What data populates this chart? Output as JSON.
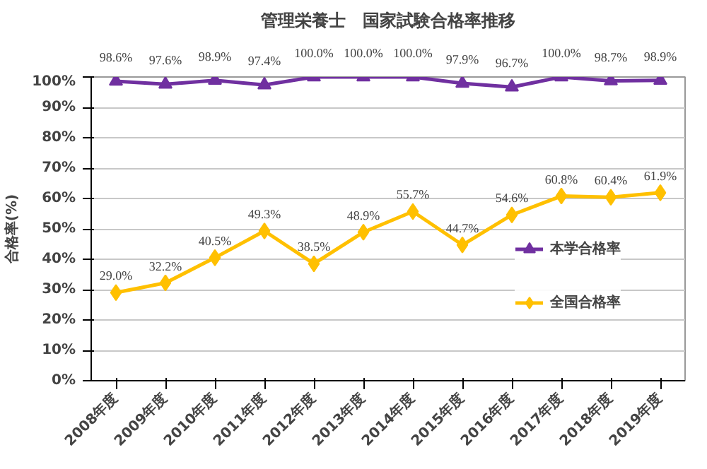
{
  "chart_data": {
    "type": "line",
    "title": "管理栄養士　国家試験合格率推移",
    "ylabel": "合格率(%)",
    "categories": [
      "2008年度",
      "2009年度",
      "2010年度",
      "2011年度",
      "2012年度",
      "2013年度",
      "2014年度",
      "2015年度",
      "2016年度",
      "2017年度",
      "2018年度",
      "2019年度"
    ],
    "series": [
      {
        "name": "本学合格率",
        "color": "#7030a0",
        "marker": "triangle",
        "values": [
          98.6,
          97.6,
          98.9,
          97.4,
          100.0,
          100.0,
          100.0,
          97.9,
          96.7,
          100.0,
          98.7,
          98.9
        ],
        "value_labels": [
          "98.6%",
          "97.6%",
          "98.9%",
          "97.4%",
          "100.0%",
          "100.0%",
          "100.0%",
          "97.9%",
          "96.7%",
          "100.0%",
          "98.7%",
          "98.9%"
        ]
      },
      {
        "name": "全国合格率",
        "color": "#ffc000",
        "marker": "diamond",
        "values": [
          29.0,
          32.2,
          40.5,
          49.3,
          38.5,
          48.9,
          55.7,
          44.7,
          54.6,
          60.8,
          60.4,
          61.9
        ],
        "value_labels": [
          "29.0%",
          "32.2%",
          "40.5%",
          "49.3%",
          "38.5%",
          "48.9%",
          "55.7%",
          "44.7%",
          "54.6%",
          "60.8%",
          "60.4%",
          "61.9%"
        ]
      }
    ],
    "ylim": [
      0,
      100
    ],
    "yticks": [
      {
        "value": 0,
        "label": "0%"
      },
      {
        "value": 10,
        "label": "10%"
      },
      {
        "value": 20,
        "label": "20%"
      },
      {
        "value": 30,
        "label": "30%"
      },
      {
        "value": 40,
        "label": "40%"
      },
      {
        "value": 50,
        "label": "50%"
      },
      {
        "value": 60,
        "label": "60%"
      },
      {
        "value": 70,
        "label": "70%"
      },
      {
        "value": 80,
        "label": "80%"
      },
      {
        "value": 90,
        "label": "90%"
      },
      {
        "value": 100,
        "label": "100%"
      }
    ],
    "grid": "y",
    "legend": "right",
    "line_style": "solid"
  }
}
